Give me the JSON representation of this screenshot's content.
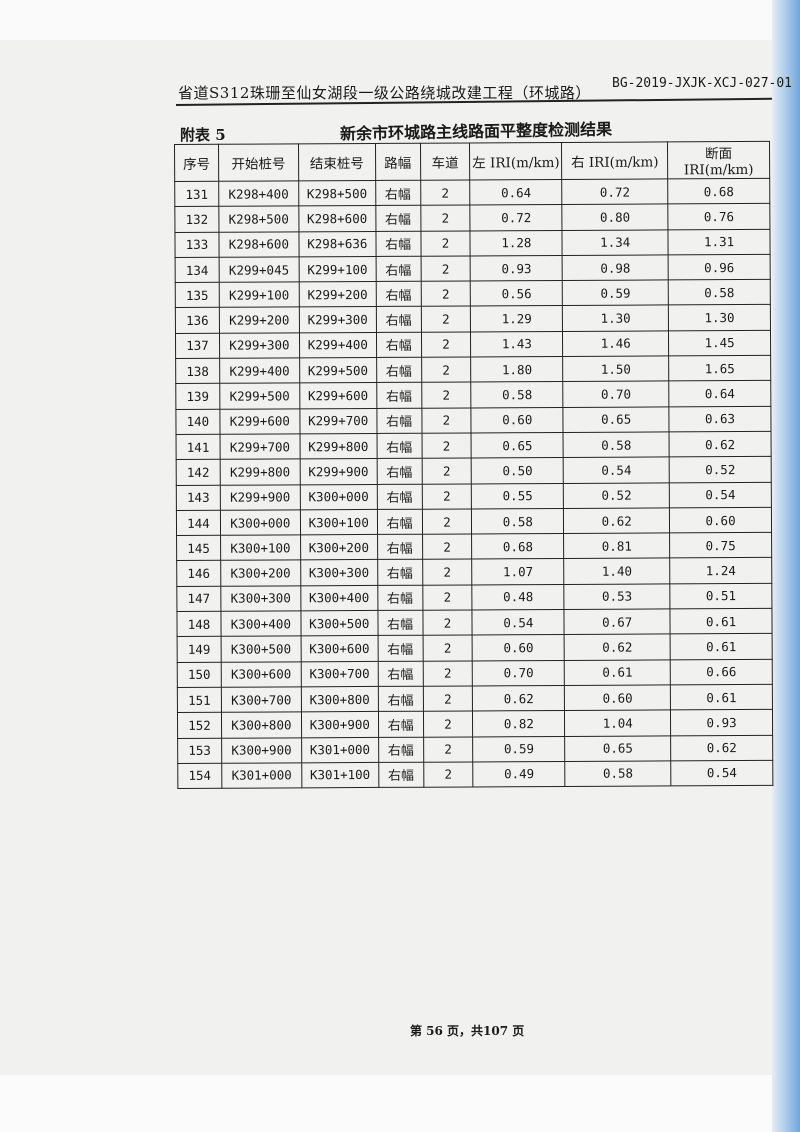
{
  "header": {
    "project_title": "省道S312珠珊至仙女湖段一级公路绕城改建工程（环城路）",
    "report_code": "BG-2019-JXJK-XCJ-027-01"
  },
  "appendix_label": "附表 5",
  "table_title": "新余市环城路主线路面平整度检测结果",
  "table": {
    "columns": [
      "序号",
      "开始桩号",
      "结束桩号",
      "路幅",
      "车道",
      "左 IRI(m/km)",
      "右 IRI(m/km)",
      "断面 IRI(m/km)"
    ],
    "rows": [
      [
        "131",
        "K298+400",
        "K298+500",
        "右幅",
        "2",
        "0.64",
        "0.72",
        "0.68"
      ],
      [
        "132",
        "K298+500",
        "K298+600",
        "右幅",
        "2",
        "0.72",
        "0.80",
        "0.76"
      ],
      [
        "133",
        "K298+600",
        "K298+636",
        "右幅",
        "2",
        "1.28",
        "1.34",
        "1.31"
      ],
      [
        "134",
        "K299+045",
        "K299+100",
        "右幅",
        "2",
        "0.93",
        "0.98",
        "0.96"
      ],
      [
        "135",
        "K299+100",
        "K299+200",
        "右幅",
        "2",
        "0.56",
        "0.59",
        "0.58"
      ],
      [
        "136",
        "K299+200",
        "K299+300",
        "右幅",
        "2",
        "1.29",
        "1.30",
        "1.30"
      ],
      [
        "137",
        "K299+300",
        "K299+400",
        "右幅",
        "2",
        "1.43",
        "1.46",
        "1.45"
      ],
      [
        "138",
        "K299+400",
        "K299+500",
        "右幅",
        "2",
        "1.80",
        "1.50",
        "1.65"
      ],
      [
        "139",
        "K299+500",
        "K299+600",
        "右幅",
        "2",
        "0.58",
        "0.70",
        "0.64"
      ],
      [
        "140",
        "K299+600",
        "K299+700",
        "右幅",
        "2",
        "0.60",
        "0.65",
        "0.63"
      ],
      [
        "141",
        "K299+700",
        "K299+800",
        "右幅",
        "2",
        "0.65",
        "0.58",
        "0.62"
      ],
      [
        "142",
        "K299+800",
        "K299+900",
        "右幅",
        "2",
        "0.50",
        "0.54",
        "0.52"
      ],
      [
        "143",
        "K299+900",
        "K300+000",
        "右幅",
        "2",
        "0.55",
        "0.52",
        "0.54"
      ],
      [
        "144",
        "K300+000",
        "K300+100",
        "右幅",
        "2",
        "0.58",
        "0.62",
        "0.60"
      ],
      [
        "145",
        "K300+100",
        "K300+200",
        "右幅",
        "2",
        "0.68",
        "0.81",
        "0.75"
      ],
      [
        "146",
        "K300+200",
        "K300+300",
        "右幅",
        "2",
        "1.07",
        "1.40",
        "1.24"
      ],
      [
        "147",
        "K300+300",
        "K300+400",
        "右幅",
        "2",
        "0.48",
        "0.53",
        "0.51"
      ],
      [
        "148",
        "K300+400",
        "K300+500",
        "右幅",
        "2",
        "0.54",
        "0.67",
        "0.61"
      ],
      [
        "149",
        "K300+500",
        "K300+600",
        "右幅",
        "2",
        "0.60",
        "0.62",
        "0.61"
      ],
      [
        "150",
        "K300+600",
        "K300+700",
        "右幅",
        "2",
        "0.70",
        "0.61",
        "0.66"
      ],
      [
        "151",
        "K300+700",
        "K300+800",
        "右幅",
        "2",
        "0.62",
        "0.60",
        "0.61"
      ],
      [
        "152",
        "K300+800",
        "K300+900",
        "右幅",
        "2",
        "0.82",
        "1.04",
        "0.93"
      ],
      [
        "153",
        "K300+900",
        "K301+000",
        "右幅",
        "2",
        "0.59",
        "0.65",
        "0.62"
      ],
      [
        "154",
        "K301+000",
        "K301+100",
        "右幅",
        "2",
        "0.49",
        "0.58",
        "0.54"
      ]
    ]
  },
  "footer": {
    "page_text": "第 56 页，共107 页"
  }
}
